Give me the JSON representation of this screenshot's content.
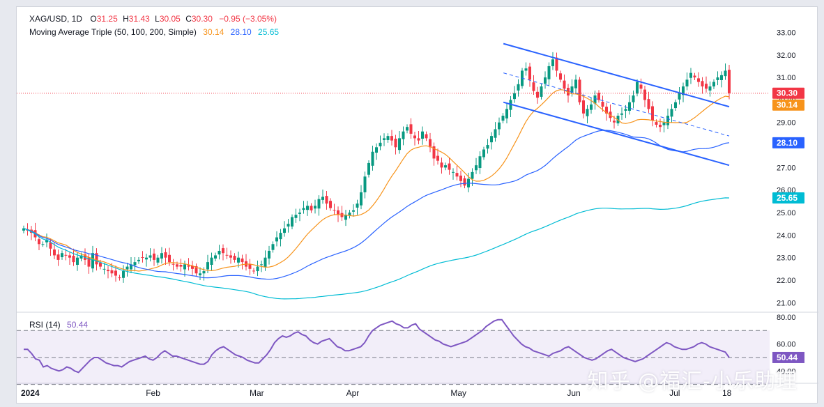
{
  "header": {
    "symbol": "XAG/USD, 1D",
    "open_label": "O",
    "open": "31.25",
    "high_label": "H",
    "high": "31.43",
    "low_label": "L",
    "low": "30.05",
    "close_label": "C",
    "close": "30.30",
    "change": "−0.95 (−3.05%)"
  },
  "ma_legend": {
    "label": "Moving Average Triple (50, 100, 200, Simple)",
    "v50": "30.14",
    "v100": "28.10",
    "v200": "25.65"
  },
  "rsi_legend": {
    "label": "RSI (14)",
    "value": "50.44"
  },
  "watermark": "知乎 @福汇-小乐助理",
  "colors": {
    "up": "#089981",
    "down": "#f23645",
    "ma50": "#f7931a",
    "ma100": "#2962ff",
    "ma200": "#00bcd4",
    "rsi": "#7e57c2",
    "channel": "#2962ff",
    "close_line": "#f23645"
  },
  "chart_data": [
    {
      "type": "candlestick",
      "title": "XAG/USD, 1D",
      "ylim": [
        20.7,
        33.2
      ],
      "y_ticks": [
        "33.00",
        "32.00",
        "31.00",
        "30.00",
        "29.00",
        "28.00",
        "27.00",
        "26.00",
        "25.00",
        "24.00",
        "23.00",
        "22.00",
        "21.00"
      ],
      "x_ticks": [
        "2024",
        "Feb",
        "Mar",
        "Apr",
        "May",
        "Jun",
        "Jul",
        "18"
      ],
      "price_labels": [
        {
          "text": "30.30",
          "value": 30.3,
          "series": "close"
        },
        {
          "text": "30.14",
          "value": 30.14,
          "series": "ma50"
        },
        {
          "text": "28.10",
          "value": 28.1,
          "series": "ma100"
        },
        {
          "text": "25.65",
          "value": 25.65,
          "series": "ma200"
        }
      ],
      "ohlc_close": [
        24.3,
        24.2,
        24.1,
        23.9,
        23.6,
        23.6,
        23.8,
        23.4,
        23.1,
        22.9,
        23.2,
        23.1,
        23.0,
        22.8,
        23.0,
        23.1,
        22.9,
        22.6,
        23.2,
        22.7,
        22.6,
        22.5,
        22.4,
        22.3,
        22.2,
        22.1,
        22.4,
        22.6,
        22.7,
        22.8,
        22.9,
        23.0,
        23.0,
        23.1,
        22.9,
        23.0,
        23.2,
        23.0,
        22.8,
        22.7,
        22.6,
        22.6,
        22.7,
        22.6,
        22.5,
        22.3,
        22.3,
        22.4,
        22.8,
        23.0,
        23.1,
        23.3,
        23.2,
        23.1,
        23.0,
        22.9,
        23.0,
        22.8,
        22.6,
        22.5,
        22.4,
        22.6,
        22.7,
        23.0,
        23.3,
        23.6,
        23.9,
        24.1,
        24.3,
        24.5,
        24.8,
        24.9,
        25.0,
        25.2,
        25.3,
        25.1,
        25.3,
        25.6,
        25.7,
        25.4,
        25.2,
        25.1,
        24.9,
        24.8,
        24.9,
        25.0,
        25.1,
        25.4,
        25.9,
        26.6,
        27.2,
        27.7,
        27.9,
        28.1,
        28.3,
        28.4,
        28.2,
        27.9,
        28.3,
        28.6,
        28.8,
        28.5,
        28.3,
        28.2,
        28.6,
        28.3,
        27.9,
        27.4,
        27.3,
        27.0,
        27.1,
        26.9,
        26.8,
        26.6,
        26.4,
        26.2,
        26.5,
        26.8,
        27.1,
        27.5,
        27.8,
        28.0,
        28.4,
        28.7,
        29.0,
        29.3,
        29.6,
        30.0,
        30.3,
        30.7,
        31.3,
        31.4,
        30.9,
        30.4,
        30.1,
        30.6,
        31.0,
        31.5,
        31.8,
        31.3,
        30.9,
        30.5,
        30.2,
        30.6,
        30.9,
        29.9,
        29.4,
        29.6,
        29.8,
        30.2,
        30.0,
        29.7,
        29.4,
        29.2,
        29.0,
        29.3,
        29.4,
        29.6,
        29.9,
        30.2,
        30.8,
        30.5,
        30.0,
        29.6,
        29.1,
        28.9,
        28.8,
        29.0,
        29.3,
        29.6,
        29.9,
        30.3,
        30.6,
        30.9,
        31.2,
        31.0,
        30.8,
        30.6,
        30.5,
        30.6,
        30.8,
        31.0,
        31.1,
        31.3,
        30.3
      ],
      "series": [
        {
          "name": "50",
          "last": 30.14
        },
        {
          "name": "100",
          "last": 28.1
        },
        {
          "name": "200",
          "last": 25.65
        }
      ],
      "channel": {
        "upper": [
          [
            0.68,
            32.5
          ],
          [
            1.0,
            29.7
          ]
        ],
        "lower": [
          [
            0.68,
            29.9
          ],
          [
            1.0,
            27.1
          ]
        ],
        "middle_dashed": [
          [
            0.68,
            31.2
          ],
          [
            1.0,
            28.4
          ]
        ]
      }
    },
    {
      "type": "line",
      "title": "RSI (14)",
      "ylim": [
        35,
        82
      ],
      "y_ticks": [
        "80.00",
        "60.00",
        "40.00"
      ],
      "bands": {
        "upper": 70,
        "middle": 50,
        "lower": 30
      },
      "last_value_label": "50.44",
      "values": [
        56,
        56,
        53,
        49,
        48,
        43,
        44,
        42,
        41,
        40,
        41,
        43,
        42,
        40,
        39,
        42,
        45,
        48,
        50,
        50,
        48,
        46,
        45,
        44,
        44,
        43,
        45,
        47,
        48,
        49,
        50,
        51,
        49,
        48,
        50,
        53,
        55,
        53,
        51,
        51,
        50,
        49,
        48,
        47,
        46,
        45,
        45,
        47,
        52,
        55,
        57,
        58,
        56,
        54,
        52,
        51,
        50,
        48,
        47,
        46,
        46,
        49,
        52,
        56,
        61,
        64,
        66,
        65,
        66,
        68,
        69,
        67,
        66,
        63,
        61,
        60,
        62,
        63,
        64,
        61,
        58,
        57,
        55,
        55,
        56,
        57,
        58,
        61,
        66,
        70,
        72,
        74,
        75,
        76,
        77,
        75,
        74,
        72,
        72,
        74,
        75,
        71,
        69,
        67,
        65,
        63,
        62,
        60,
        59,
        58,
        59,
        60,
        61,
        62,
        64,
        66,
        68,
        70,
        73,
        75,
        77,
        78,
        78,
        74,
        70,
        66,
        63,
        60,
        58,
        57,
        55,
        54,
        53,
        52,
        51,
        53,
        54,
        55,
        57,
        58,
        56,
        54,
        52,
        50,
        49,
        48,
        49,
        51,
        53,
        55,
        56,
        54,
        52,
        50,
        49,
        48,
        47,
        48,
        49,
        51,
        53,
        55,
        57,
        59,
        61,
        60,
        58,
        57,
        56,
        56,
        57,
        58,
        60,
        61,
        60,
        58,
        57,
        56,
        55,
        54,
        50
      ]
    }
  ]
}
